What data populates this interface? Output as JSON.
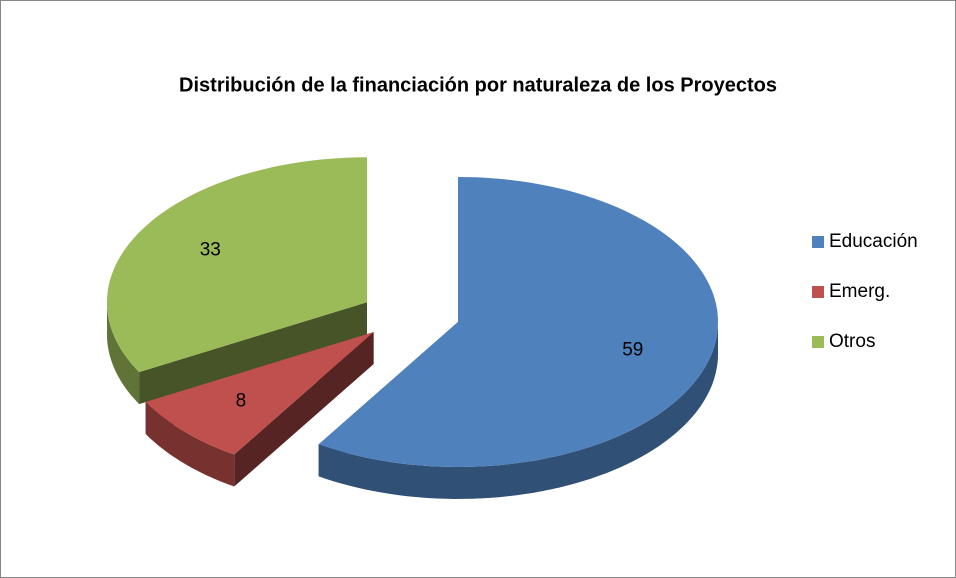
{
  "chart_data": {
    "type": "pie",
    "title": "Distribución de la financiación por naturaleza de los Proyectos",
    "categories": [
      "Educación",
      "Emerg.",
      "Otros"
    ],
    "values": [
      59,
      8,
      33
    ],
    "colors": [
      "#4f81bd",
      "#c0504d",
      "#9bbb59"
    ],
    "legend": "right"
  }
}
